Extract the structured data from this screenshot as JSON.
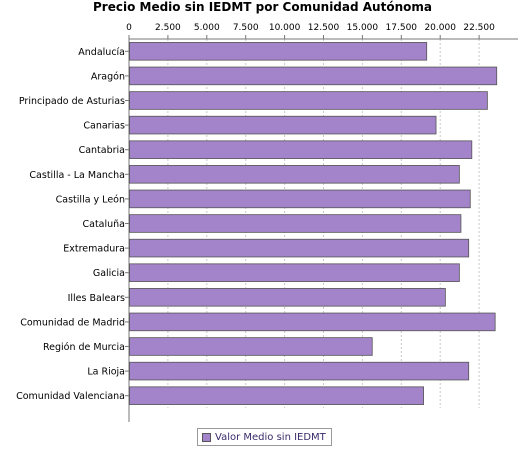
{
  "colors": {
    "bar_fill": "#a383c9",
    "bar_stroke": "#555555",
    "grid": "#c8c8c8",
    "axis": "#777777"
  },
  "legend": {
    "label": "Valor Medio sin IEDMT",
    "placement": "bottom-center"
  },
  "chart_data": {
    "type": "bar",
    "orientation": "horizontal",
    "title": "Precio Medio sin IEDMT por Comunidad Autónoma",
    "xlabel": "",
    "ylabel": "",
    "xlim": [
      0,
      25000
    ],
    "x_ticks": [
      0,
      2500,
      5000,
      7500,
      10000,
      12500,
      15000,
      17500,
      20000,
      22500
    ],
    "x_tick_labels": [
      "0",
      "2.500",
      "5.000",
      "7.500",
      "10.000",
      "12.500",
      "15.000",
      "17.500",
      "20.000",
      "22.500"
    ],
    "grid": true,
    "categories": [
      "Andalucía",
      "Aragón",
      "Principado de Asturias",
      "Canarias",
      "Cantabria",
      "Castilla - La Mancha",
      "Castilla y León",
      "Cataluña",
      "Extremadura",
      "Galicia",
      "Illes Balears",
      "Comunidad de Madrid",
      "Región de Murcia",
      "La Rioja",
      "Comunidad Valenciana"
    ],
    "series": [
      {
        "name": "Valor Medio sin IEDMT",
        "values": [
          19100,
          23600,
          23000,
          19700,
          22000,
          21200,
          21900,
          21300,
          21800,
          21200,
          20300,
          23500,
          15600,
          21800,
          18900
        ]
      }
    ]
  }
}
